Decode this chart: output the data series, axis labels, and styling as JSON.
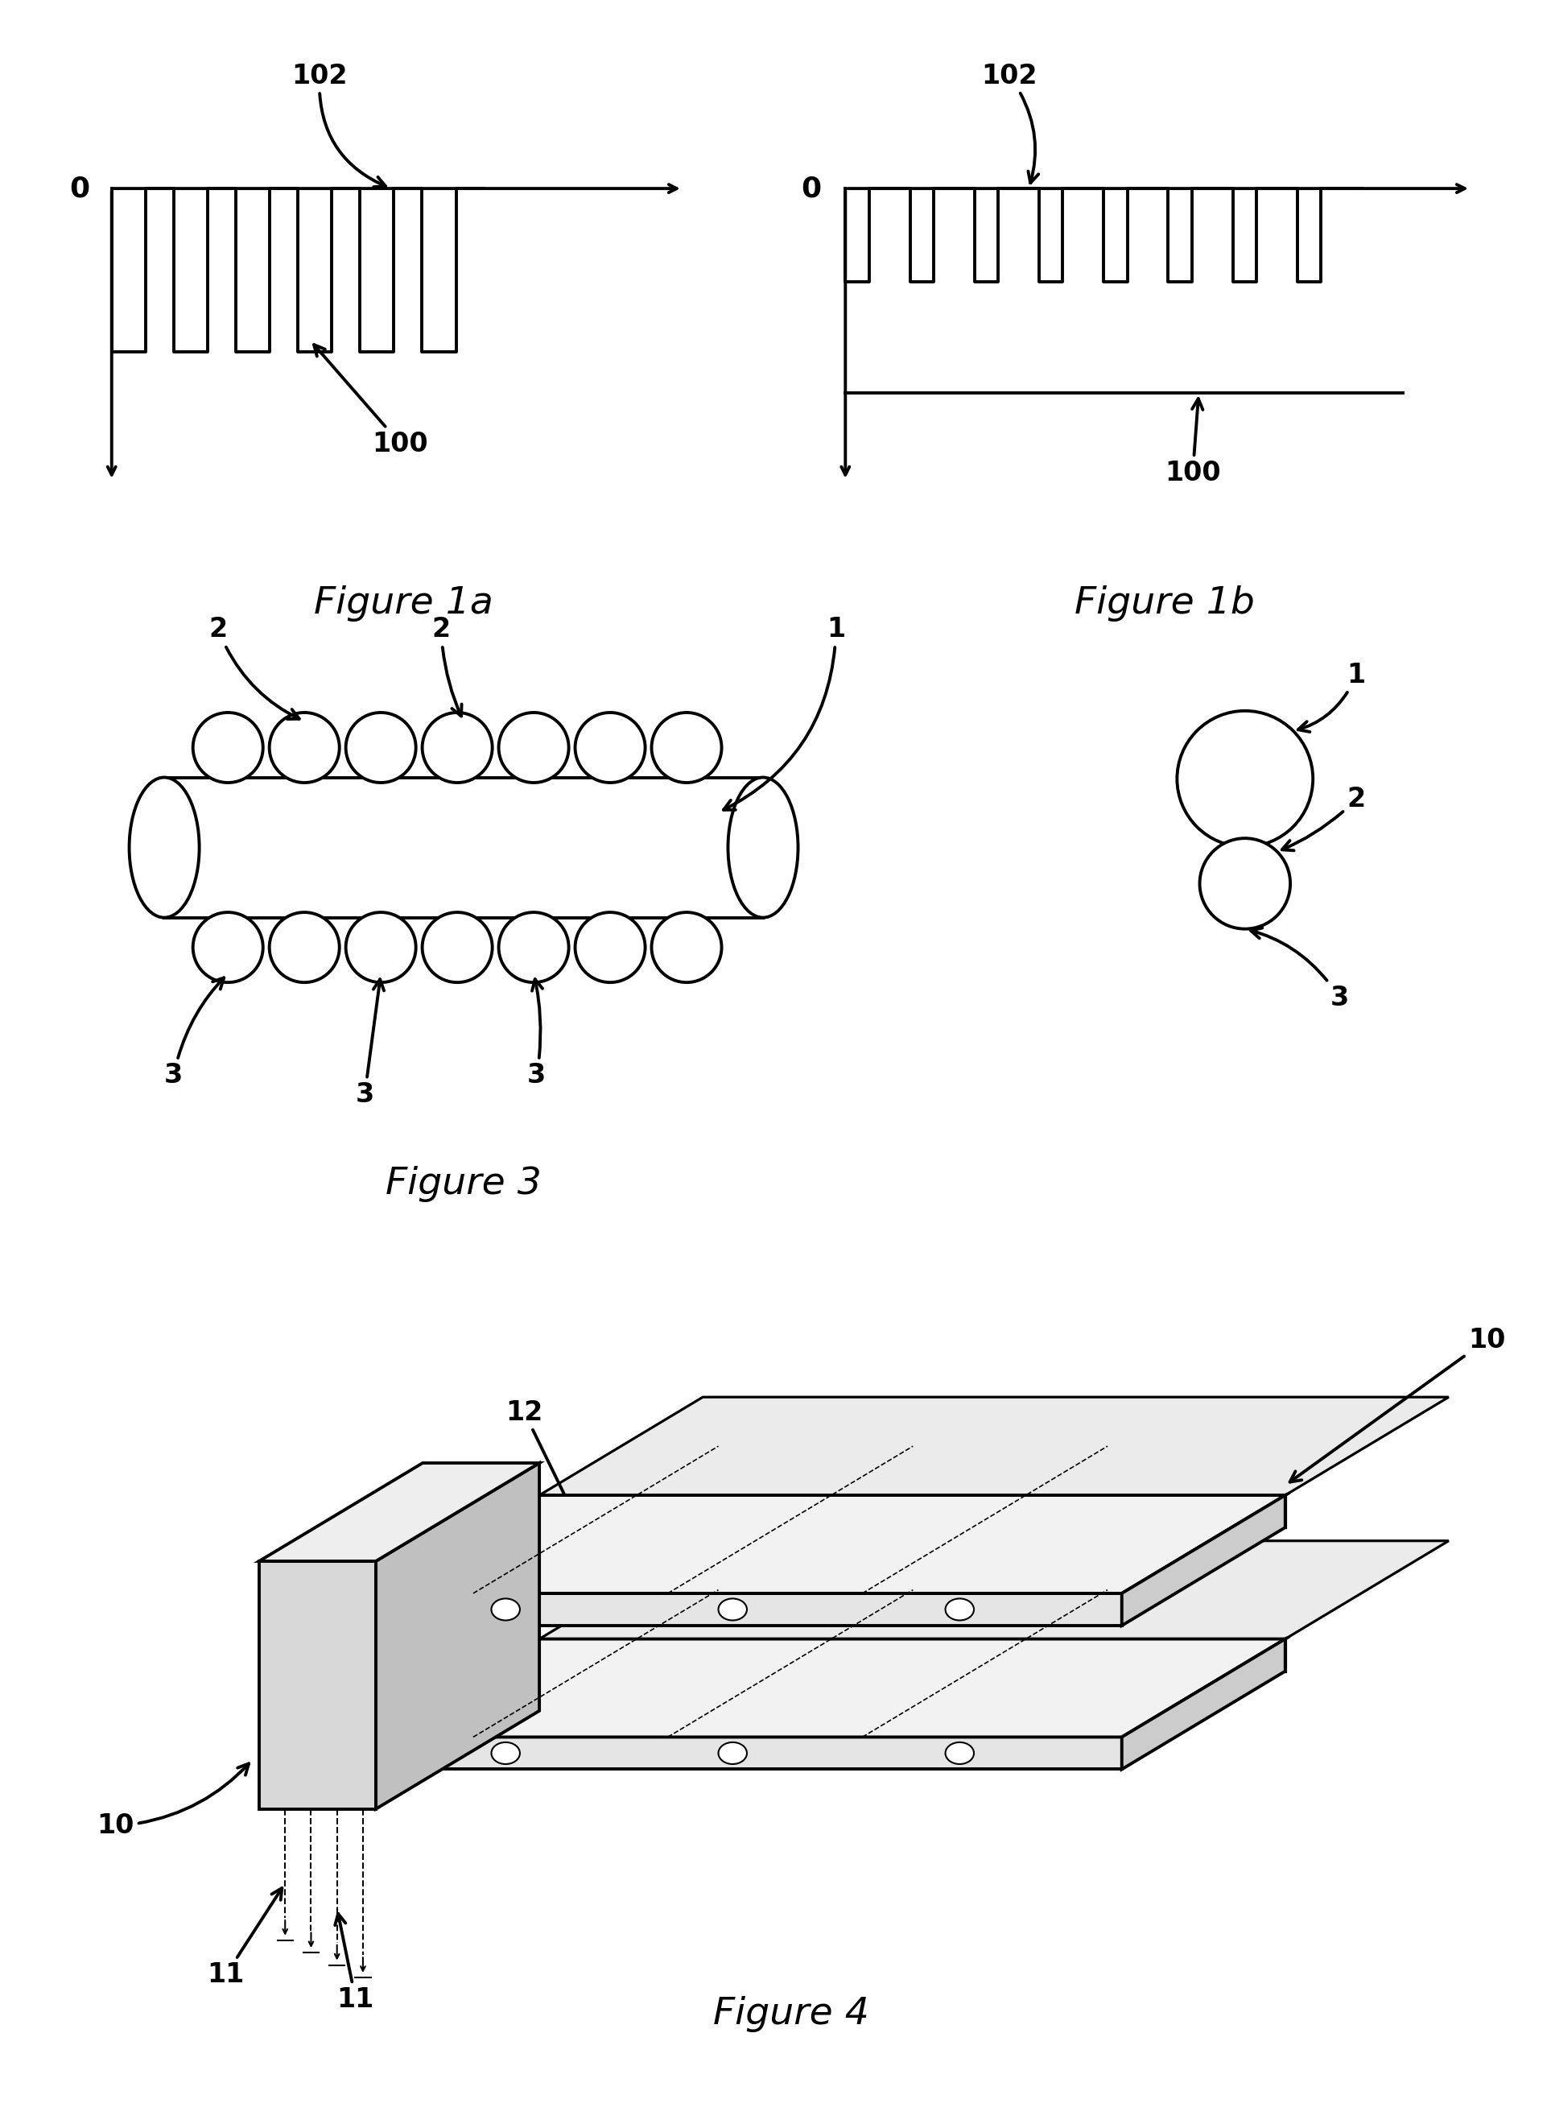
{
  "bg_color": "#ffffff",
  "fig_width": 19.27,
  "fig_height": 26.38,
  "fig1a_title": "Figure 1a",
  "fig1b_title": "Figure 1b",
  "fig3_title": "Figure 3",
  "fig4_title": "Figure 4",
  "title_fontsize": 34,
  "label_fontsize": 24,
  "zero_fontsize": 26
}
